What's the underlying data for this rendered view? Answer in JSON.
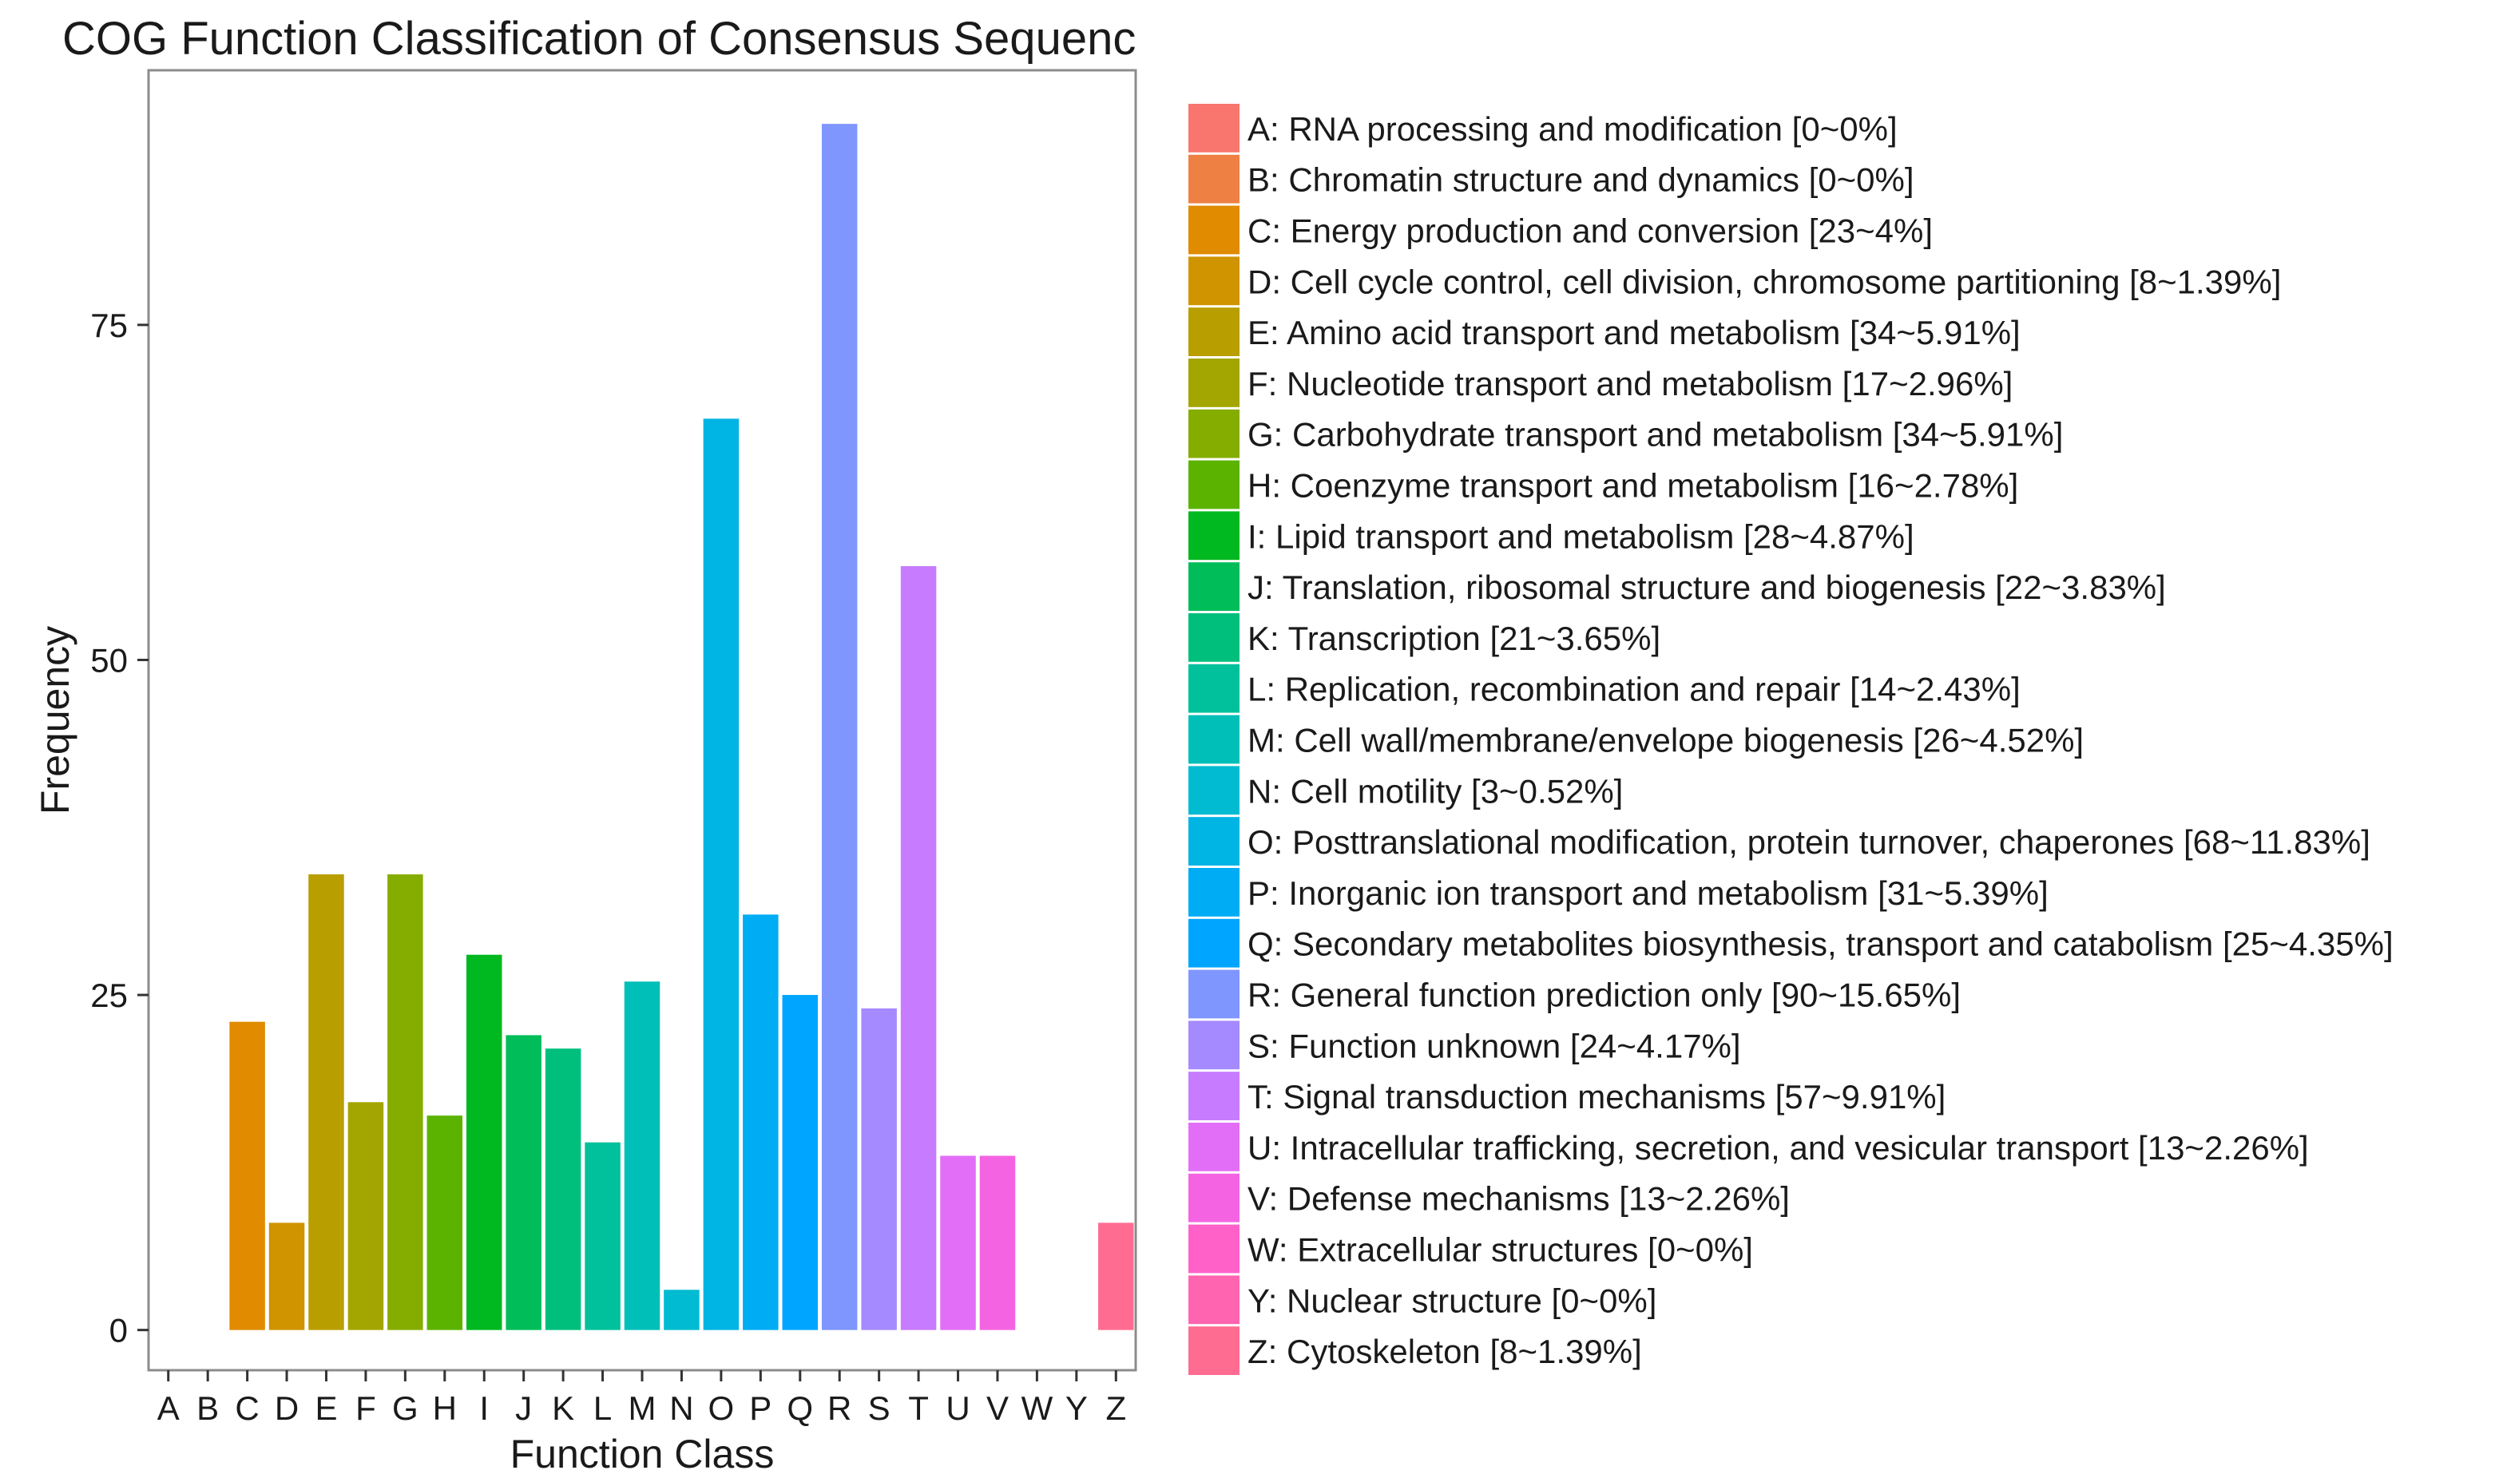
{
  "chart_data": {
    "type": "bar",
    "title": "COG Function Classification of Consensus Sequenc",
    "xlabel": "Function Class",
    "ylabel": "Frequency",
    "ylim": [
      -3,
      94
    ],
    "yticks": [
      0,
      25,
      50,
      75
    ],
    "grid": false,
    "legend_position": "right",
    "categories": [
      "A",
      "B",
      "C",
      "D",
      "E",
      "F",
      "G",
      "H",
      "I",
      "J",
      "K",
      "L",
      "M",
      "N",
      "O",
      "P",
      "Q",
      "R",
      "S",
      "T",
      "U",
      "V",
      "W",
      "Y",
      "Z"
    ],
    "values": [
      0,
      0,
      23,
      8,
      34,
      17,
      34,
      16,
      28,
      22,
      21,
      14,
      26,
      3,
      68,
      31,
      25,
      90,
      24,
      57,
      13,
      13,
      0,
      0,
      8
    ],
    "colors": [
      "#F8766D",
      "#EE8044",
      "#E08B00",
      "#CF9400",
      "#B99E00",
      "#A3A500",
      "#85AD00",
      "#5BB300",
      "#00B81F",
      "#00BC59",
      "#00BF7D",
      "#00C19C",
      "#00BFB8",
      "#00BBD1",
      "#00B4E4",
      "#00ACF4",
      "#00A5FF",
      "#7F96FF",
      "#A58AFF",
      "#C77CFF",
      "#E26EF7",
      "#F464E2",
      "#FF61C9",
      "#FF64B0",
      "#FF6C91"
    ],
    "legend": [
      "A: RNA processing and modification [0~0%]",
      "B: Chromatin structure and dynamics [0~0%]",
      "C: Energy production and conversion [23~4%]",
      "D: Cell cycle control, cell division, chromosome partitioning [8~1.39%]",
      "E: Amino acid transport and metabolism [34~5.91%]",
      "F: Nucleotide transport and metabolism [17~2.96%]",
      "G: Carbohydrate transport and metabolism [34~5.91%]",
      "H: Coenzyme transport and metabolism [16~2.78%]",
      "I: Lipid transport and metabolism [28~4.87%]",
      "J: Translation, ribosomal structure and biogenesis [22~3.83%]",
      "K: Transcription [21~3.65%]",
      "L: Replication, recombination and repair [14~2.43%]",
      "M: Cell wall/membrane/envelope biogenesis [26~4.52%]",
      "N: Cell motility [3~0.52%]",
      "O: Posttranslational modification, protein turnover, chaperones [68~11.83%]",
      "P: Inorganic ion transport and metabolism [31~5.39%]",
      "Q: Secondary metabolites biosynthesis, transport and catabolism [25~4.35%]",
      "R: General function prediction only [90~15.65%]",
      "S: Function unknown [24~4.17%]",
      "T: Signal transduction mechanisms [57~9.91%]",
      "U: Intracellular trafficking, secretion, and vesicular transport [13~2.26%]",
      "V: Defense mechanisms [13~2.26%]",
      "W: Extracellular structures [0~0%]",
      "Y: Nuclear structure [0~0%]",
      "Z: Cytoskeleton [8~1.39%]"
    ]
  }
}
